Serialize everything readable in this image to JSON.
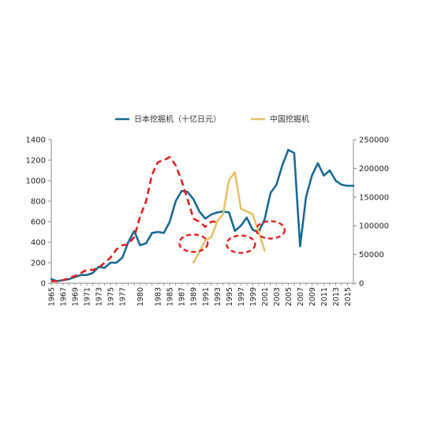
{
  "chart_data": {
    "type": "line",
    "legend_position": "top-center",
    "grid": false,
    "x": [
      1965,
      1966,
      1967,
      1968,
      1969,
      1970,
      1971,
      1972,
      1973,
      1974,
      1975,
      1976,
      1977,
      1978,
      1979,
      1980,
      1981,
      1982,
      1983,
      1984,
      1985,
      1986,
      1987,
      1988,
      1989,
      1990,
      1991,
      1992,
      1993,
      1994,
      1995,
      1996,
      1997,
      1998,
      1999,
      2000,
      2001,
      2002,
      2003,
      2004,
      2005,
      2006,
      2007,
      2008,
      2009,
      2010,
      2011,
      2012,
      2013,
      2014,
      2015,
      2016
    ],
    "x_tick_labels": [
      "1965",
      "1967",
      "1969",
      "1971",
      "1973",
      "1975",
      "1977",
      "1980",
      "1983",
      "1985",
      "1987",
      "1989",
      "1991",
      "1993",
      "1995",
      "1997",
      "1999",
      "2001",
      "2003",
      "2005",
      "2007",
      "2009",
      "2011",
      "2013",
      "2015"
    ],
    "y_left": {
      "lim": [
        0,
        1400
      ],
      "ticks": [
        0,
        200,
        400,
        600,
        800,
        1000,
        1200,
        1400
      ]
    },
    "y_right": {
      "lim": [
        0,
        250000
      ],
      "ticks": [
        0,
        50000,
        100000,
        150000,
        200000,
        250000
      ]
    },
    "series": [
      {
        "name": "日本挖掘机（十亿日元）",
        "axis": "left",
        "color": "#1a6a92",
        "values": [
          40,
          20,
          30,
          40,
          60,
          80,
          80,
          100,
          160,
          150,
          200,
          200,
          250,
          400,
          510,
          370,
          390,
          490,
          500,
          490,
          600,
          800,
          900,
          890,
          820,
          700,
          630,
          670,
          690,
          700,
          690,
          510,
          560,
          640,
          520,
          500,
          620,
          880,
          960,
          1150,
          1300,
          1270,
          360,
          840,
          1050,
          1170,
          1050,
          1100,
          1000,
          960,
          950,
          950
        ]
      },
      {
        "name": "中国挖掘机",
        "axis": "right",
        "color": "#e8c06a",
        "values": [
          null,
          null,
          null,
          null,
          null,
          null,
          null,
          null,
          null,
          null,
          null,
          null,
          null,
          null,
          null,
          null,
          null,
          null,
          null,
          null,
          null,
          null,
          null,
          null,
          36000,
          54000,
          75000,
          80000,
          108000,
          120000,
          180000,
          193000,
          130000,
          125000,
          120000,
          90000,
          57000,
          null,
          null,
          null,
          null,
          null,
          null,
          null,
          null,
          null,
          null,
          null,
          null,
          null,
          null,
          null
        ]
      },
      {
        "name": "",
        "axis": "left",
        "color": "#e02020",
        "dashed": true,
        "values": [
          20,
          20,
          30,
          50,
          70,
          100,
          130,
          130,
          150,
          200,
          250,
          330,
          370,
          380,
          450,
          650,
          800,
          1060,
          1180,
          1200,
          1230,
          1150,
          1000,
          820,
          630,
          600,
          550,
          600,
          600,
          null,
          null,
          null,
          null,
          null,
          null,
          null,
          null,
          null,
          null,
          null,
          null,
          null,
          null,
          null,
          null,
          null,
          null,
          null,
          null,
          null,
          null,
          null
        ]
      }
    ],
    "annotations": [
      {
        "shape": "dashed-ellipse",
        "color": "#e02020",
        "x": 1989,
        "y": 390
      },
      {
        "shape": "dashed-ellipse",
        "color": "#e02020",
        "x": 1997,
        "y": 380
      },
      {
        "shape": "dashed-ellipse",
        "color": "#e02020",
        "x": 2002,
        "y": 520
      }
    ]
  }
}
